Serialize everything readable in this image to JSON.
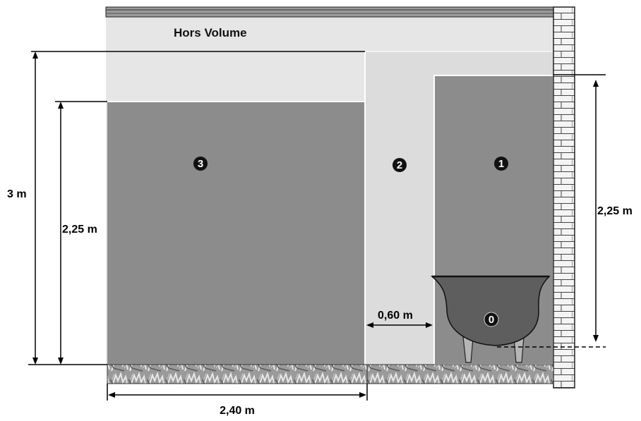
{
  "diagram": {
    "title": "Hors Volume",
    "zones": {
      "zone0": "0",
      "zone1": "1",
      "zone2": "2",
      "zone3": "3"
    },
    "dimensions": {
      "total_height": "3 m",
      "zone3_height": "2,25 m",
      "zone1_height": "2,25 m",
      "zone2_width": "0,60 m",
      "zone3_width": "2,40 m"
    },
    "colors": {
      "hors_volume": "#e6e6e6",
      "zone2": "#dcdcdc",
      "zone3": "#8c8c8c",
      "zone1": "#8c8c8c",
      "bathtub": "#5e5e5e",
      "brick_wall": "#f4f4f4"
    }
  }
}
